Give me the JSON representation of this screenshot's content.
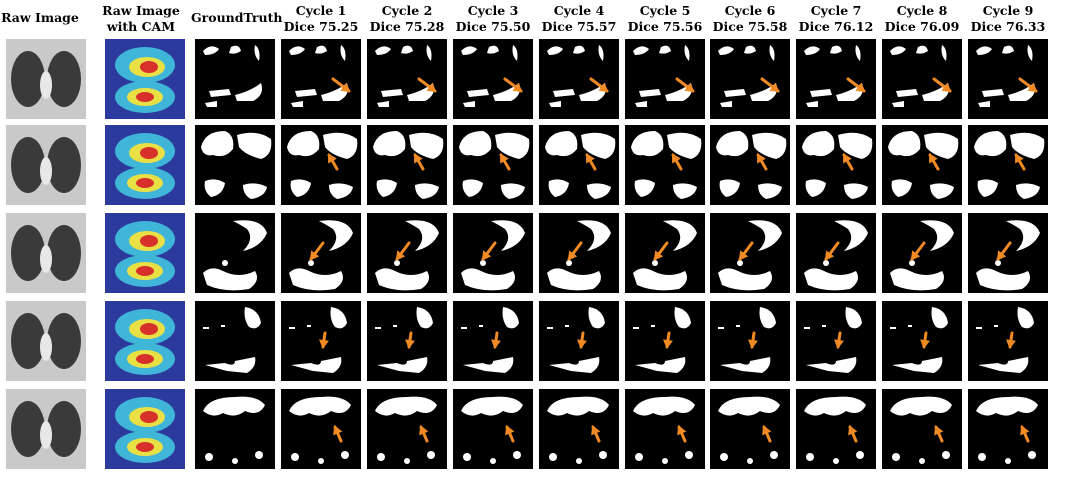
{
  "columns": [
    {
      "line1": "Raw Image",
      "line2": ""
    },
    {
      "line1": "Raw Image",
      "line2": "with CAM"
    },
    {
      "line1": "GroundTruth",
      "line2": ""
    },
    {
      "line1": "Cycle 1",
      "line2": "Dice 75.25"
    },
    {
      "line1": "Cycle 2",
      "line2": "Dice 75.28"
    },
    {
      "line1": "Cycle 3",
      "line2": "Dice 75.50"
    },
    {
      "line1": "Cycle 4",
      "line2": "Dice 75.57"
    },
    {
      "line1": "Cycle 5",
      "line2": "Dice 75.56"
    },
    {
      "line1": "Cycle 6",
      "line2": "Dice 75.58"
    },
    {
      "line1": "Cycle 7",
      "line2": "Dice 76.12"
    },
    {
      "line1": "Cycle 8",
      "line2": "Dice 76.09"
    },
    {
      "line1": "Cycle 9",
      "line2": "Dice 76.33"
    }
  ],
  "rows": 5,
  "colors": {
    "arrow": "#f08a24",
    "mask_bg": "#000000",
    "mask_fg": "#ffffff",
    "ct_bg": "#c9c9c9",
    "lung": "#3a3a3a"
  }
}
